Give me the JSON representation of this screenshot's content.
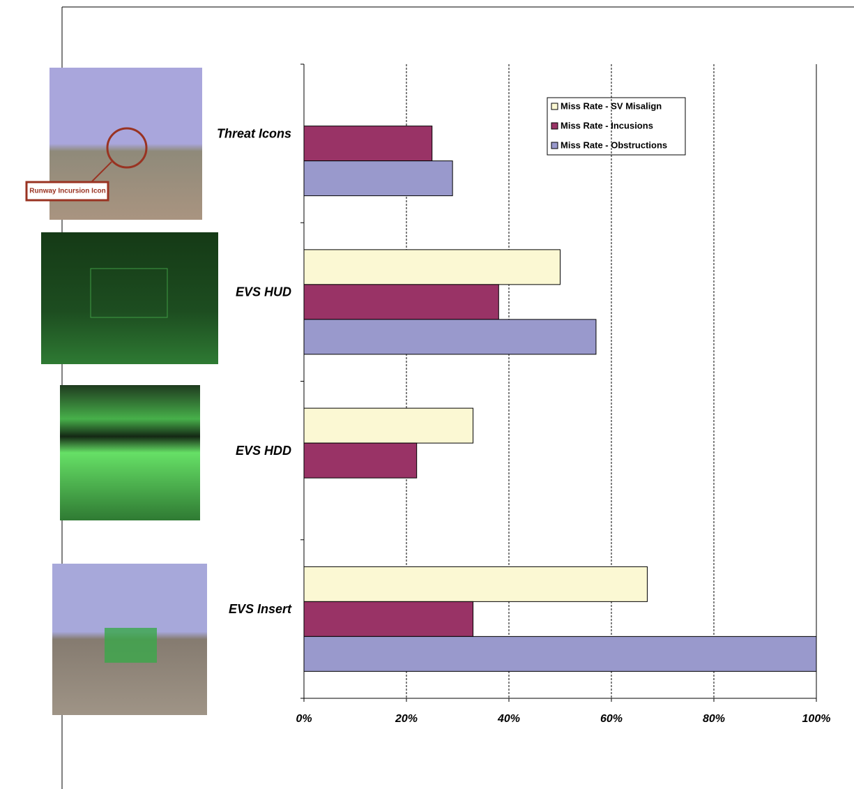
{
  "chart_data": {
    "type": "bar",
    "orientation": "horizontal",
    "categories": [
      "Threat Icons",
      "EVS HUD",
      "EVS HDD",
      "EVS  Insert"
    ],
    "series": [
      {
        "name": "Miss Rate - SV Misalign",
        "color": "#fbf8d3",
        "values": [
          null,
          50,
          33,
          67
        ]
      },
      {
        "name": "Miss Rate - Incusions",
        "color": "#993366",
        "values": [
          25,
          38,
          22,
          33
        ]
      },
      {
        "name": "Miss Rate - Obstructions",
        "color": "#9999cc",
        "values": [
          29,
          57,
          null,
          100
        ]
      }
    ],
    "xlim": [
      0,
      100
    ],
    "xticks": [
      {
        "value": 0,
        "label": "0%"
      },
      {
        "value": 20,
        "label": "20%"
      },
      {
        "value": 40,
        "label": "40%"
      },
      {
        "value": 60,
        "label": "60%"
      },
      {
        "value": 80,
        "label": "80%"
      },
      {
        "value": 100,
        "label": "100%"
      }
    ],
    "grid": true,
    "legend": "upper right",
    "annotation": "Runway Incursion Icon"
  }
}
